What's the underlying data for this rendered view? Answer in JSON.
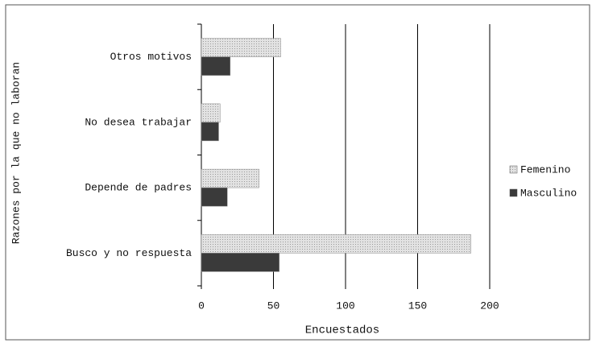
{
  "chart_data": {
    "type": "barh",
    "xlabel": "Encuestados",
    "ylabel": "Razones por la que no laboran",
    "categories": [
      "Busco y no respuesta",
      "Depende de padres",
      "No desea trabajar",
      "Otros motivos"
    ],
    "series": [
      {
        "name": "Femenino",
        "color": "#cfcfcf",
        "values": [
          187,
          40,
          13,
          55
        ]
      },
      {
        "name": "Masculino",
        "color": "#3a3a3a",
        "values": [
          54,
          18,
          12,
          20
        ]
      }
    ],
    "xlim": [
      0,
      200
    ],
    "xticks": [
      0,
      50,
      100,
      150,
      200
    ],
    "grid": true,
    "legend": "right"
  }
}
